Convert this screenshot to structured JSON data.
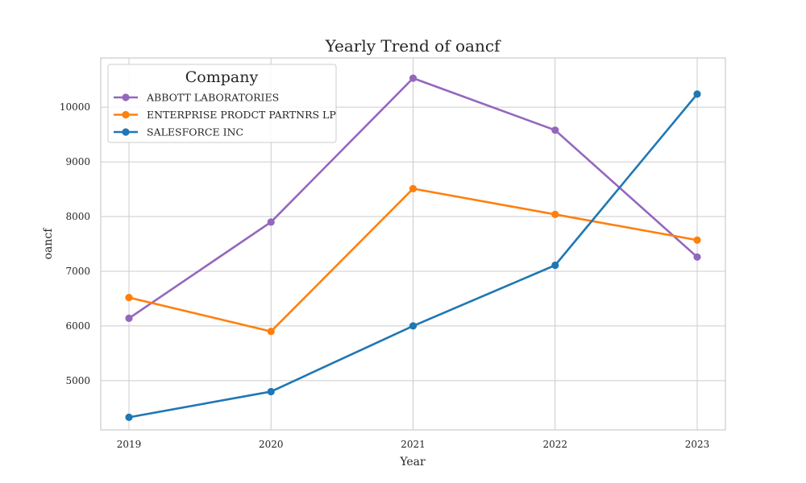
{
  "chart_data": {
    "type": "line",
    "title": "Yearly Trend of oancf",
    "xlabel": "Year",
    "ylabel": "oancf",
    "x": [
      "2019",
      "2020",
      "2021",
      "2022",
      "2023"
    ],
    "y_ticks": [
      5000,
      6000,
      7000,
      8000,
      9000,
      10000
    ],
    "ylim": [
      4100,
      10900
    ],
    "grid": true,
    "legend": {
      "title": "Company",
      "placement": "top-left"
    },
    "series": [
      {
        "name": "ABBOTT LABORATORIES",
        "color": "#9467bd",
        "values": [
          6140,
          7900,
          10530,
          9580,
          7260
        ]
      },
      {
        "name": "ENTERPRISE PRODCT PARTNRS LP",
        "color": "#ff7f0e",
        "values": [
          6520,
          5900,
          8510,
          8040,
          7570
        ]
      },
      {
        "name": "SALESFORCE INC",
        "color": "#1f77b4",
        "values": [
          4330,
          4800,
          6000,
          7110,
          10240
        ]
      }
    ]
  }
}
